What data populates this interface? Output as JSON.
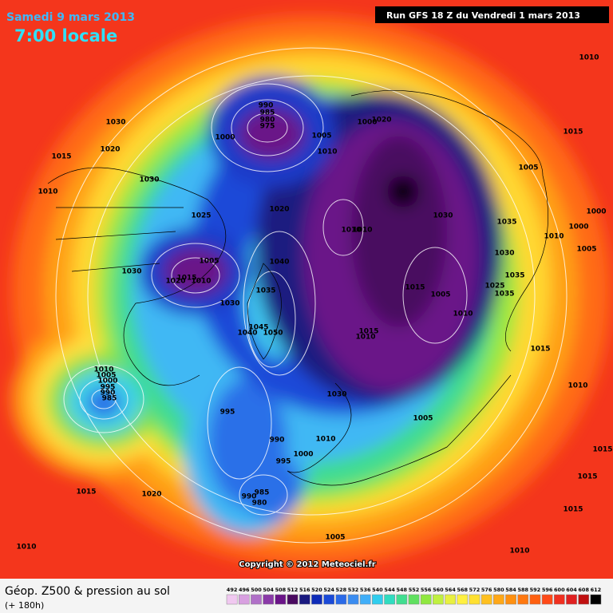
{
  "header": {
    "date": "Samedi 9 mars 2013",
    "time": "7:00 locale",
    "run": "Run GFS 18 Z du Vendredi 1 mars 2013"
  },
  "copyright": "Copyright © 2012 Meteociel.fr",
  "legend": {
    "title": "Géop. Z500 & pression au sol",
    "lead": "(+ 180h)"
  },
  "isobars": [
    1030,
    1020,
    1015,
    1010,
    1030,
    990,
    985,
    980,
    975,
    1000,
    1005,
    1010,
    1000,
    1020,
    1025,
    1020,
    1005,
    1030,
    1020,
    1015,
    1010,
    1030,
    1040,
    1035,
    1045,
    1050,
    1040,
    1010,
    1010,
    1030,
    1035,
    1030,
    1035,
    1025,
    1035,
    1015,
    1005,
    1010,
    1015,
    1010,
    1015,
    1005,
    1010,
    1000,
    1000,
    1010,
    1005,
    1015,
    1010,
    1030,
    1005,
    995,
    990,
    1010,
    1000,
    995,
    985,
    980,
    990,
    1015,
    1020,
    1010,
    1005,
    1010,
    1015,
    1015,
    1015,
    1010,
    1005,
    1000,
    995,
    990,
    985
  ],
  "colorbar": {
    "labels": [
      492,
      496,
      500,
      504,
      508,
      512,
      516,
      520,
      524,
      528,
      532,
      536,
      540,
      544,
      548,
      552,
      556,
      560,
      564,
      568,
      572,
      576,
      580,
      584,
      588,
      592,
      596,
      600,
      604,
      608,
      612
    ],
    "colors": [
      "#f0c8f0",
      "#d8a0e0",
      "#b070c8",
      "#8a3aa8",
      "#6a1488",
      "#4a0a60",
      "#1a1a80",
      "#0f2cb8",
      "#1a4ad8",
      "#2a6ae8",
      "#3a8cf0",
      "#40aef8",
      "#30cdee",
      "#30dcc0",
      "#40de90",
      "#60e060",
      "#90e840",
      "#c0f040",
      "#e8f040",
      "#fff040",
      "#ffe030",
      "#ffc020",
      "#ffa818",
      "#ff9010",
      "#ff7810",
      "#ff6010",
      "#ff4a18",
      "#f03020",
      "#e02020",
      "#c01010",
      "#000000"
    ]
  }
}
